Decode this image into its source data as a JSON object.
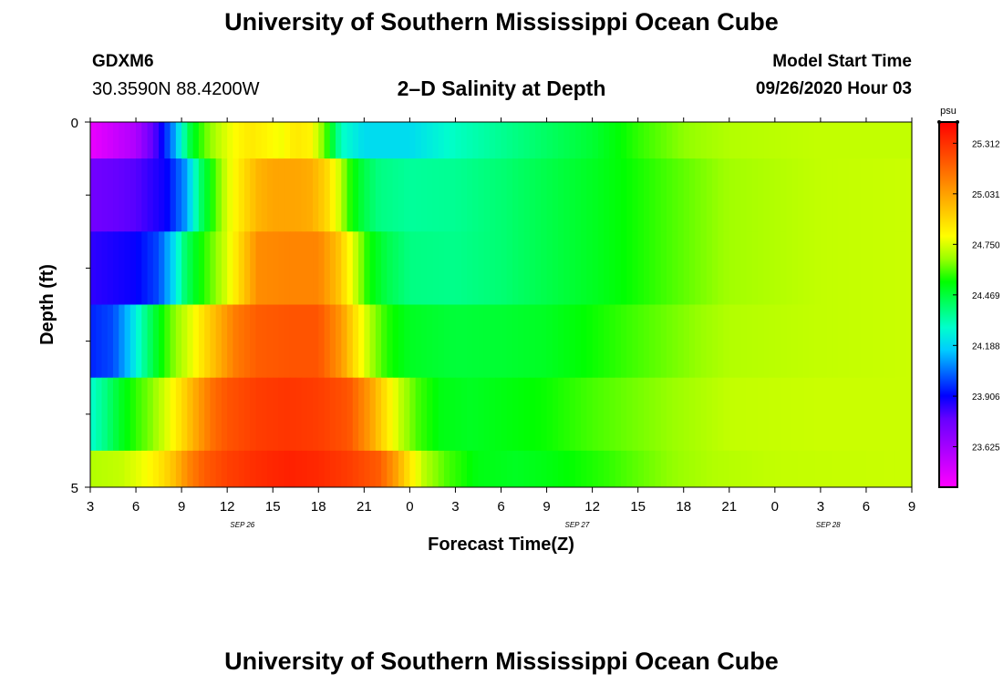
{
  "header": {
    "title": "University of Southern Mississippi Ocean Cube",
    "station": "GDXM6",
    "coords": "30.3590N 88.4200W",
    "plot_title": "2–D Salinity at Depth",
    "model_label": "Model Start Time",
    "model_time": "09/26/2020 Hour 03"
  },
  "footer": {
    "title": "University of Southern Mississippi Ocean Cube"
  },
  "chart_data": {
    "type": "heatmap",
    "title": "2–D Salinity at Depth",
    "xlabel": "Forecast Time(Z)",
    "ylabel": "Depth (ft)",
    "x_tick_labels": [
      "3",
      "6",
      "9",
      "12",
      "15",
      "18",
      "21",
      "0",
      "3",
      "6",
      "9",
      "12",
      "15",
      "18",
      "21",
      "0",
      "3",
      "6",
      "9"
    ],
    "x_start_hour": 3,
    "x_end_hour": 57,
    "date_labels": [
      {
        "text": "SEP 26",
        "hour": 13
      },
      {
        "text": "SEP 27",
        "hour": 35
      },
      {
        "text": "SEP 28",
        "hour": 51.5
      }
    ],
    "y_tick_labels": [
      "0",
      "5"
    ],
    "ylim": [
      0,
      5
    ],
    "y_minor_ticks": [
      1,
      2,
      3,
      4
    ],
    "colorbar": {
      "unit": "psu",
      "tick_labels": [
        "25.312",
        "25.031",
        "24.750",
        "24.469",
        "24.188",
        "23.906",
        "23.625"
      ],
      "min": 23.4,
      "max": 25.43,
      "colors": [
        "#ff00ff",
        "#cc00ff",
        "#9900ff",
        "#6600ff",
        "#0000ff",
        "#0066ff",
        "#00ccff",
        "#00ffcc",
        "#00ff66",
        "#00ff00",
        "#99ff00",
        "#ffff00",
        "#ffcc00",
        "#ff9900",
        "#ff6600",
        "#ff3300",
        "#ff0000"
      ]
    },
    "layers": [
      {
        "depth": [
          0,
          0.5
        ],
        "points": [
          [
            3,
            23.45
          ],
          [
            6,
            23.6
          ],
          [
            7.5,
            23.85
          ],
          [
            8.5,
            24.1
          ],
          [
            9.5,
            24.45
          ],
          [
            10.5,
            24.62
          ],
          [
            11.5,
            24.72
          ],
          [
            12.5,
            24.8
          ],
          [
            13.5,
            24.85
          ],
          [
            14.5,
            24.82
          ],
          [
            15.5,
            24.78
          ],
          [
            16.5,
            24.85
          ],
          [
            17.5,
            24.82
          ],
          [
            18.5,
            24.6
          ],
          [
            19.5,
            24.3
          ],
          [
            21,
            24.2
          ],
          [
            24,
            24.2
          ],
          [
            27,
            24.3
          ],
          [
            30,
            24.36
          ],
          [
            33,
            24.42
          ],
          [
            36,
            24.48
          ],
          [
            39,
            24.58
          ],
          [
            42,
            24.66
          ],
          [
            45,
            24.7
          ],
          [
            51,
            24.72
          ],
          [
            57,
            24.72
          ]
        ]
      },
      {
        "depth": [
          0.5,
          1.5
        ],
        "points": [
          [
            3,
            23.75
          ],
          [
            6,
            23.8
          ],
          [
            8,
            23.9
          ],
          [
            9.3,
            24.1
          ],
          [
            10.2,
            24.4
          ],
          [
            11.2,
            24.6
          ],
          [
            12,
            24.75
          ],
          [
            13,
            24.87
          ],
          [
            14,
            24.98
          ],
          [
            15,
            25.02
          ],
          [
            16.5,
            25.02
          ],
          [
            17.5,
            25.0
          ],
          [
            18.5,
            24.9
          ],
          [
            19.3,
            24.75
          ],
          [
            20,
            24.58
          ],
          [
            21,
            24.45
          ],
          [
            22,
            24.38
          ],
          [
            24,
            24.35
          ],
          [
            27,
            24.36
          ],
          [
            30,
            24.4
          ],
          [
            33,
            24.45
          ],
          [
            36,
            24.5
          ],
          [
            39,
            24.56
          ],
          [
            42,
            24.62
          ],
          [
            45,
            24.68
          ],
          [
            51,
            24.72
          ],
          [
            57,
            24.73
          ]
        ]
      },
      {
        "depth": [
          1.5,
          2.5
        ],
        "points": [
          [
            3,
            23.85
          ],
          [
            6,
            23.9
          ],
          [
            7.5,
            24.0
          ],
          [
            8.5,
            24.2
          ],
          [
            9.2,
            24.4
          ],
          [
            10,
            24.52
          ],
          [
            11,
            24.63
          ],
          [
            12,
            24.75
          ],
          [
            13,
            24.92
          ],
          [
            14,
            25.08
          ],
          [
            16,
            25.1
          ],
          [
            18,
            25.1
          ],
          [
            19.3,
            24.95
          ],
          [
            20.3,
            24.75
          ],
          [
            21.3,
            24.55
          ],
          [
            22.5,
            24.45
          ],
          [
            24,
            24.38
          ],
          [
            27,
            24.37
          ],
          [
            30,
            24.4
          ],
          [
            33,
            24.45
          ],
          [
            36,
            24.5
          ],
          [
            39,
            24.56
          ],
          [
            42,
            24.62
          ],
          [
            45,
            24.68
          ],
          [
            51,
            24.72
          ],
          [
            57,
            24.73
          ]
        ]
      },
      {
        "depth": [
          2.5,
          3.5
        ],
        "points": [
          [
            3,
            23.95
          ],
          [
            4.5,
            24.0
          ],
          [
            5.5,
            24.15
          ],
          [
            6.5,
            24.35
          ],
          [
            7.5,
            24.52
          ],
          [
            8.5,
            24.65
          ],
          [
            9.5,
            24.75
          ],
          [
            10.5,
            24.88
          ],
          [
            11.5,
            25.0
          ],
          [
            12.5,
            25.12
          ],
          [
            14,
            25.2
          ],
          [
            16,
            25.22
          ],
          [
            18,
            25.22
          ],
          [
            19.5,
            25.05
          ],
          [
            20.5,
            24.85
          ],
          [
            21.5,
            24.68
          ],
          [
            22.5,
            24.57
          ],
          [
            24,
            24.5
          ],
          [
            27,
            24.47
          ],
          [
            30,
            24.48
          ],
          [
            33,
            24.5
          ],
          [
            36,
            24.55
          ],
          [
            39,
            24.6
          ],
          [
            42,
            24.65
          ],
          [
            45,
            24.7
          ],
          [
            51,
            24.72
          ],
          [
            57,
            24.73
          ]
        ]
      },
      {
        "depth": [
          3.5,
          4.5
        ],
        "points": [
          [
            3,
            24.28
          ],
          [
            4,
            24.38
          ],
          [
            5,
            24.5
          ],
          [
            6,
            24.58
          ],
          [
            7,
            24.65
          ],
          [
            8,
            24.75
          ],
          [
            9,
            24.88
          ],
          [
            10,
            25.02
          ],
          [
            11,
            25.15
          ],
          [
            12,
            25.22
          ],
          [
            14,
            25.28
          ],
          [
            16,
            25.3
          ],
          [
            18,
            25.28
          ],
          [
            20,
            25.22
          ],
          [
            21.5,
            25.02
          ],
          [
            22.5,
            24.85
          ],
          [
            23.5,
            24.7
          ],
          [
            24.5,
            24.6
          ],
          [
            26,
            24.52
          ],
          [
            28,
            24.5
          ],
          [
            30,
            24.52
          ],
          [
            33,
            24.55
          ],
          [
            36,
            24.6
          ],
          [
            39,
            24.64
          ],
          [
            42,
            24.68
          ],
          [
            45,
            24.72
          ],
          [
            51,
            24.73
          ],
          [
            57,
            24.73
          ]
        ]
      },
      {
        "depth": [
          4.5,
          5
        ],
        "points": [
          [
            3,
            24.7
          ],
          [
            5,
            24.72
          ],
          [
            6.5,
            24.78
          ],
          [
            7.5,
            24.85
          ],
          [
            8.5,
            24.95
          ],
          [
            9.5,
            25.1
          ],
          [
            10.5,
            25.2
          ],
          [
            12,
            25.27
          ],
          [
            14,
            25.32
          ],
          [
            16,
            25.35
          ],
          [
            18,
            25.33
          ],
          [
            20,
            25.28
          ],
          [
            22,
            25.2
          ],
          [
            23,
            25.05
          ],
          [
            24,
            24.85
          ],
          [
            25,
            24.7
          ],
          [
            26.5,
            24.6
          ],
          [
            28.5,
            24.52
          ],
          [
            31,
            24.5
          ],
          [
            33,
            24.52
          ],
          [
            35,
            24.55
          ],
          [
            37,
            24.58
          ],
          [
            39,
            24.62
          ],
          [
            41,
            24.66
          ],
          [
            44,
            24.7
          ],
          [
            48,
            24.72
          ],
          [
            57,
            24.73
          ]
        ]
      }
    ]
  }
}
